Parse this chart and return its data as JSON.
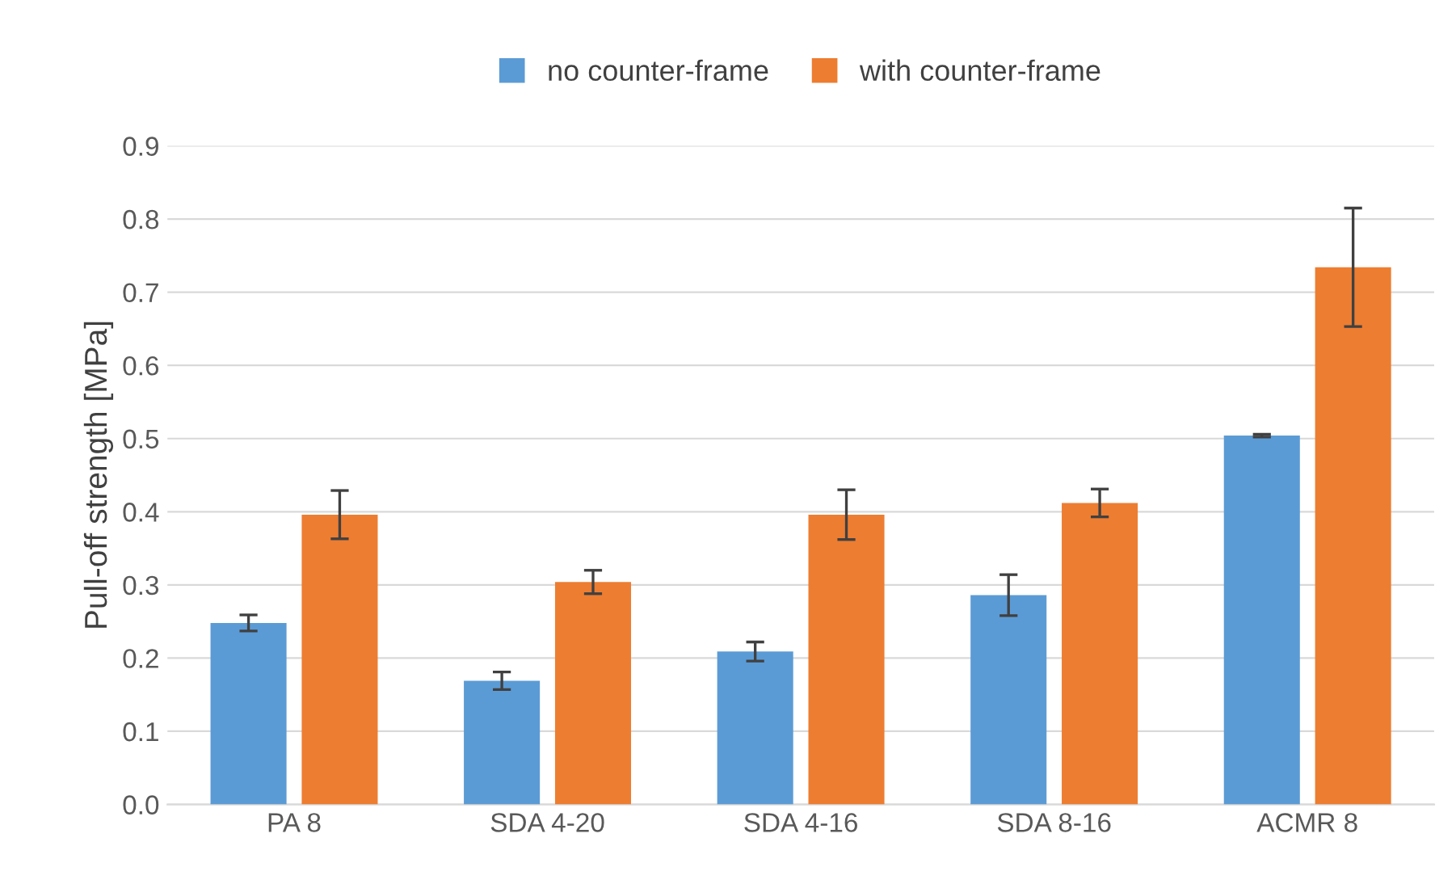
{
  "chart_data": {
    "type": "bar",
    "ylabel": "Pull-off strength [MPa]",
    "categories": [
      "PA 8",
      "SDA 4-20",
      "SDA 4-16",
      "SDA 8-16",
      "ACMR 8"
    ],
    "series": [
      {
        "name": "no counter-frame",
        "color": "#5b9bd5",
        "values": [
          0.248,
          0.169,
          0.209,
          0.286,
          0.504
        ],
        "errors": [
          0.011,
          0.012,
          0.013,
          0.028,
          0.002
        ]
      },
      {
        "name": "with counter-frame",
        "color": "#ed7d31",
        "values": [
          0.396,
          0.304,
          0.396,
          0.412,
          0.734
        ],
        "errors": [
          0.033,
          0.016,
          0.034,
          0.019,
          0.081
        ]
      }
    ],
    "ylim": [
      0,
      0.9
    ],
    "yticks": [
      {
        "value": 0,
        "label": "0.0"
      },
      {
        "value": 0.1,
        "label": "0.1"
      },
      {
        "value": 0.2,
        "label": "0.2"
      },
      {
        "value": 0.3,
        "label": "0.3"
      },
      {
        "value": 0.4,
        "label": "0.4"
      },
      {
        "value": 0.5,
        "label": "0.5"
      },
      {
        "value": 0.6,
        "label": "0.6"
      },
      {
        "value": 0.7,
        "label": "0.7"
      },
      {
        "value": 0.8,
        "label": "0.8"
      },
      {
        "value": 0.9,
        "label": "0.9"
      }
    ],
    "grid": "y",
    "legend": "top"
  }
}
